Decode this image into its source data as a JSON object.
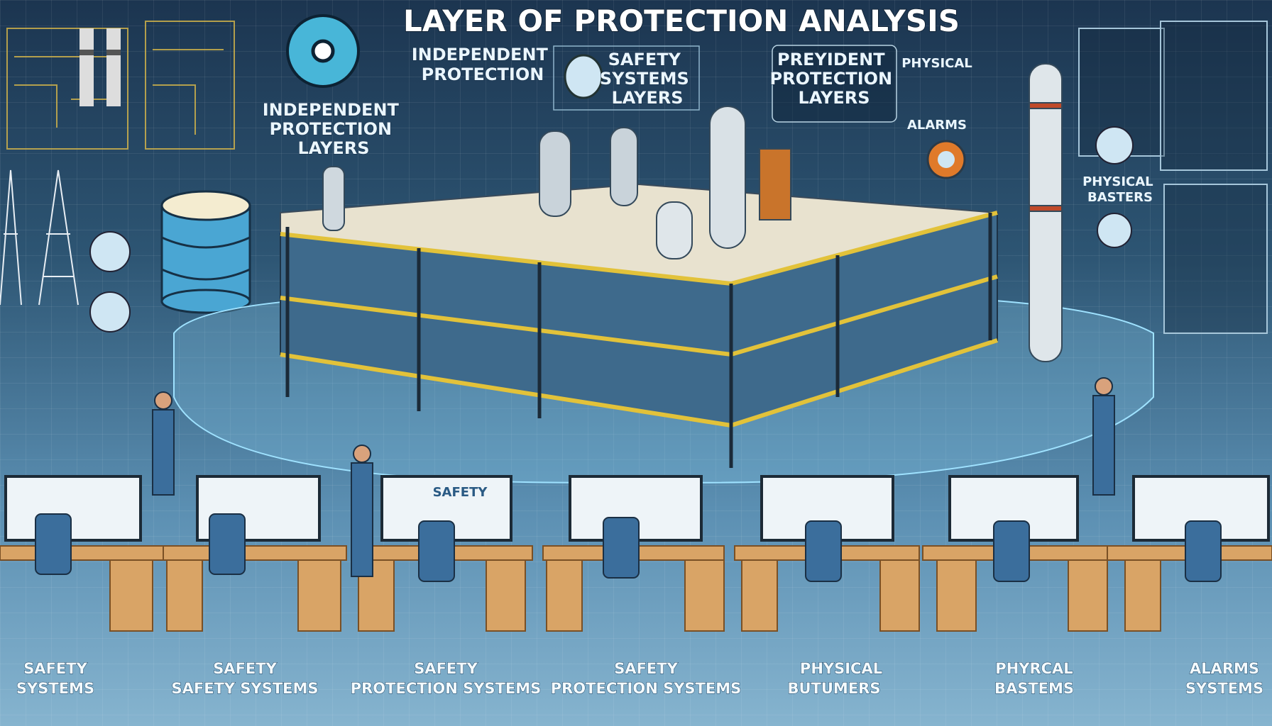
{
  "title": "LAYER OF PROTECTION ANALYSIS",
  "top_labels": {
    "independent_protection_layers": [
      "INDEPENDENT",
      "PROTECTION",
      "LAYERS"
    ],
    "independent_protection": [
      "INDEPENDENT",
      "PROTECTION"
    ],
    "safety_systems_layers": [
      "SAFETY",
      "SYSTEMS",
      "LAYERS"
    ],
    "prevident_protection_layers": [
      "PREYIDENT",
      "PROTECTION",
      "LAYERS"
    ],
    "physical": "PHYSICAL",
    "alarms": "ALARMS",
    "physical_basters": [
      "PHYSICAL",
      "BASTERS"
    ]
  },
  "monitor_label": "SAFETY",
  "bottom_labels": [
    [
      "SAFETY",
      "SYSTEMS"
    ],
    [
      "SAFETY",
      "SAFETY SYSTEMS"
    ],
    [
      "SAFETY",
      "PROTECTION SYSTEMS"
    ],
    [
      "SAFETY",
      "PROTECTION SYSTEMS"
    ],
    [
      "PHYSICAL",
      "BUTUMERS"
    ],
    [
      "PHYRCAL",
      "BASTEMS"
    ],
    [
      "ALARMS",
      "SYSTEMS"
    ]
  ],
  "colors": {
    "background_top": "#1c3550",
    "background_bottom": "#86b4cf",
    "platform_rail": "#e2c23a",
    "desk": "#d9a466",
    "uniform": "#3b6e9c"
  }
}
